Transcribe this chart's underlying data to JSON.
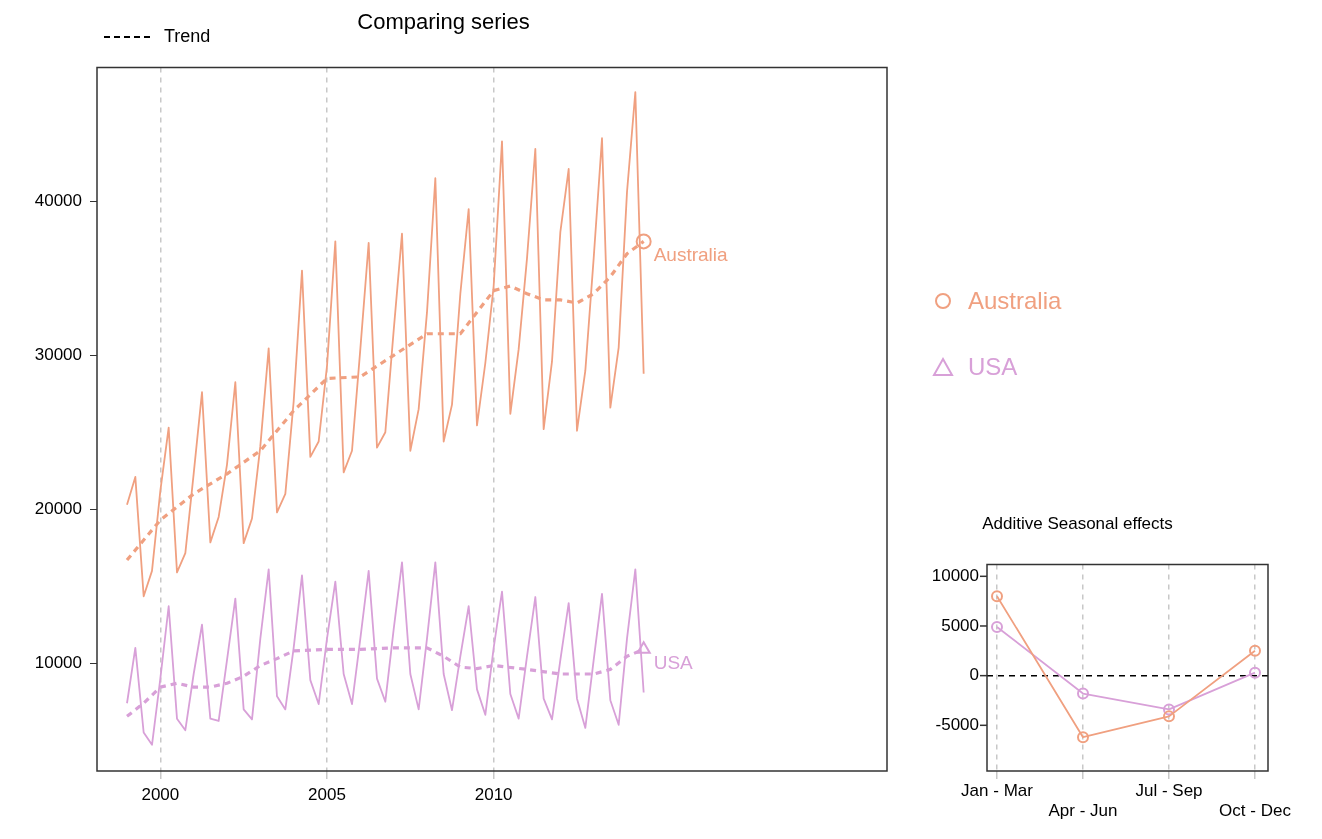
{
  "chart_data": [
    {
      "type": "line",
      "title": "Comparing series",
      "annotations": [
        "Trend"
      ],
      "x": [
        1999,
        1999.25,
        1999.5,
        1999.75,
        2000,
        2000.25,
        2000.5,
        2000.75,
        2001,
        2001.25,
        2001.5,
        2001.75,
        2002,
        2002.25,
        2002.5,
        2002.75,
        2003,
        2003.25,
        2003.5,
        2003.75,
        2004,
        2004.25,
        2004.5,
        2004.75,
        2005,
        2005.25,
        2005.5,
        2005.75,
        2006,
        2006.25,
        2006.5,
        2006.75,
        2007,
        2007.25,
        2007.5,
        2007.75,
        2008,
        2008.25,
        2008.5,
        2008.75,
        2009,
        2009.25,
        2009.5,
        2009.75,
        2010,
        2010.25,
        2010.5,
        2010.75,
        2011,
        2011.25,
        2011.5,
        2011.75,
        2012,
        2012.25,
        2012.5,
        2012.75,
        2013,
        2013.25,
        2013.5,
        2013.75,
        2014,
        2014.25,
        2014.5
      ],
      "series": [
        {
          "name": "Australia",
          "color": "#f0a080",
          "values": [
            20300,
            22100,
            14350,
            16000,
            21200,
            25300,
            15900,
            17150,
            22300,
            27600,
            17850,
            19500,
            22900,
            28250,
            17800,
            19400,
            24100,
            30450,
            19800,
            21000,
            27000,
            35500,
            23400,
            24400,
            29300,
            37400,
            22400,
            23800,
            30400,
            37300,
            24000,
            25000,
            31600,
            37900,
            23800,
            26500,
            32800,
            41500,
            24400,
            26800,
            34000,
            39500,
            25450,
            29500,
            34500,
            43900,
            26200,
            30400,
            36300,
            43400,
            25200,
            29600,
            38000,
            42100,
            25100,
            29000,
            36300,
            44100,
            26600,
            30500,
            40600,
            47100,
            28800
          ]
        },
        {
          "color": "#f0a080",
          "line_style": "dashed",
          "x": [
            1999,
            2000,
            2001,
            2002,
            2003,
            2004,
            2005,
            2006,
            2007,
            2008,
            2009,
            2009.75,
            2010,
            2010.5,
            2011,
            2011.5,
            2012,
            2012.5,
            2013,
            2013.5,
            2014,
            2014.5
          ],
          "values": [
            16700,
            19300,
            21000,
            22300,
            23800,
            26400,
            28500,
            28600,
            30000,
            31400,
            31400,
            33500,
            34200,
            34500,
            34000,
            33600,
            33600,
            33400,
            34000,
            35100,
            36600,
            37400
          ]
        },
        {
          "type": "scatter",
          "color": "#f0a080",
          "marker": "circle",
          "x": [
            2014.5
          ],
          "values": [
            37400
          ]
        },
        {
          "name": "USA",
          "color": "#d8a0d8",
          "values": [
            7400,
            11000,
            5500,
            4700,
            9000,
            13700,
            6400,
            5650,
            9300,
            12500,
            6400,
            6250,
            10200,
            14200,
            7000,
            6350,
            11600,
            16100,
            7850,
            7000,
            11000,
            15700,
            8900,
            7350,
            11600,
            15300,
            9300,
            7350,
            11600,
            16000,
            9000,
            7500,
            12200,
            16550,
            9300,
            7000,
            11600,
            16550,
            9300,
            6950,
            10450,
            13700,
            8300,
            6650,
            11000,
            14650,
            8000,
            6400,
            10450,
            14300,
            7700,
            6350,
            10200,
            13900,
            7700,
            5800,
            10200,
            14500,
            7600,
            6000,
            11600,
            16100,
            8100
          ]
        },
        {
          "color": "#d8a0d8",
          "line_style": "dashed",
          "x": [
            1999,
            1999.5,
            2000,
            2000.5,
            2001,
            2001.5,
            2002,
            2002.5,
            2003,
            2003.5,
            2004,
            2005,
            2006,
            2007,
            2008,
            2008.5,
            2009,
            2009.5,
            2010,
            2011,
            2012,
            2013,
            2013.5,
            2014,
            2014.5
          ],
          "values": [
            6550,
            7400,
            8450,
            8700,
            8450,
            8450,
            8700,
            9150,
            9850,
            10300,
            10800,
            10900,
            10900,
            11000,
            11000,
            10450,
            9750,
            9650,
            9850,
            9600,
            9300,
            9300,
            9600,
            10450,
            10900
          ]
        },
        {
          "type": "scatter",
          "color": "#d8a0d8",
          "marker": "triangle",
          "x": [
            2014.5
          ],
          "values": [
            10900
          ]
        }
      ],
      "xlim": [
        1998.1,
        2021.8
      ],
      "xticks": [
        2000,
        2005,
        2010
      ],
      "ylim": [
        3000,
        48700
      ],
      "yticks": [
        10000,
        20000,
        30000,
        40000
      ],
      "grid": "x",
      "legend": "right"
    },
    {
      "type": "line",
      "title": "Additive Seasonal effects",
      "categories": [
        "Jan - Mar",
        "Apr - Jun",
        "Jul - Sep",
        "Oct - Dec"
      ],
      "series": [
        {
          "color": "#f0a080",
          "values": [
            8000,
            -6200,
            -4100,
            2500
          ]
        },
        {
          "color": "#d8a0d8",
          "values": [
            4900,
            -1800,
            -3400,
            300
          ]
        }
      ],
      "marker": "circle",
      "ylim": [
        -9600,
        11200
      ],
      "yticks": [
        -5000,
        0,
        5000,
        10000
      ],
      "grid": "x",
      "ref_lines": [
        {
          "axis": "y",
          "value": 0,
          "color": "#000000",
          "line_style": "dashed"
        }
      ]
    }
  ]
}
